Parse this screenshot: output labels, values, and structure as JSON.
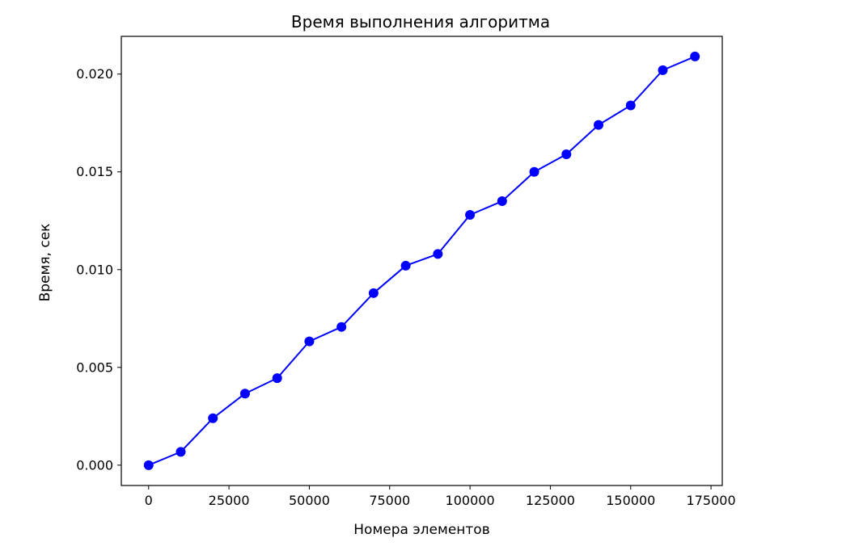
{
  "chart_data": {
    "type": "line",
    "title": "Время выполнения алгоритма",
    "xlabel": "Номера элементов",
    "ylabel": "Время, сек",
    "x": [
      0,
      10000,
      20000,
      30000,
      40000,
      50000,
      60000,
      70000,
      80000,
      90000,
      100000,
      110000,
      120000,
      130000,
      140000,
      150000,
      160000,
      170000
    ],
    "series": [
      {
        "values": [
          0.0,
          0.00068,
          0.0024,
          0.00366,
          0.00445,
          0.00633,
          0.00707,
          0.0088,
          0.0102,
          0.0108,
          0.0128,
          0.0135,
          0.015,
          0.0159,
          0.0174,
          0.0184,
          0.0202,
          0.0209
        ],
        "color": "#0000ff",
        "marker": "circle"
      }
    ],
    "xlim": [
      -8500,
      178500
    ],
    "ylim": [
      -0.00104,
      0.02193
    ],
    "xticks": [
      0,
      25000,
      50000,
      75000,
      100000,
      125000,
      150000,
      175000
    ],
    "xtick_labels": [
      "0",
      "25000",
      "50000",
      "75000",
      "100000",
      "125000",
      "150000",
      "175000"
    ],
    "yticks": [
      0.0,
      0.005,
      0.01,
      0.015,
      0.02
    ],
    "ytick_labels": [
      "0.000",
      "0.005",
      "0.010",
      "0.015",
      "0.020"
    ],
    "grid": false,
    "legend": "none"
  }
}
